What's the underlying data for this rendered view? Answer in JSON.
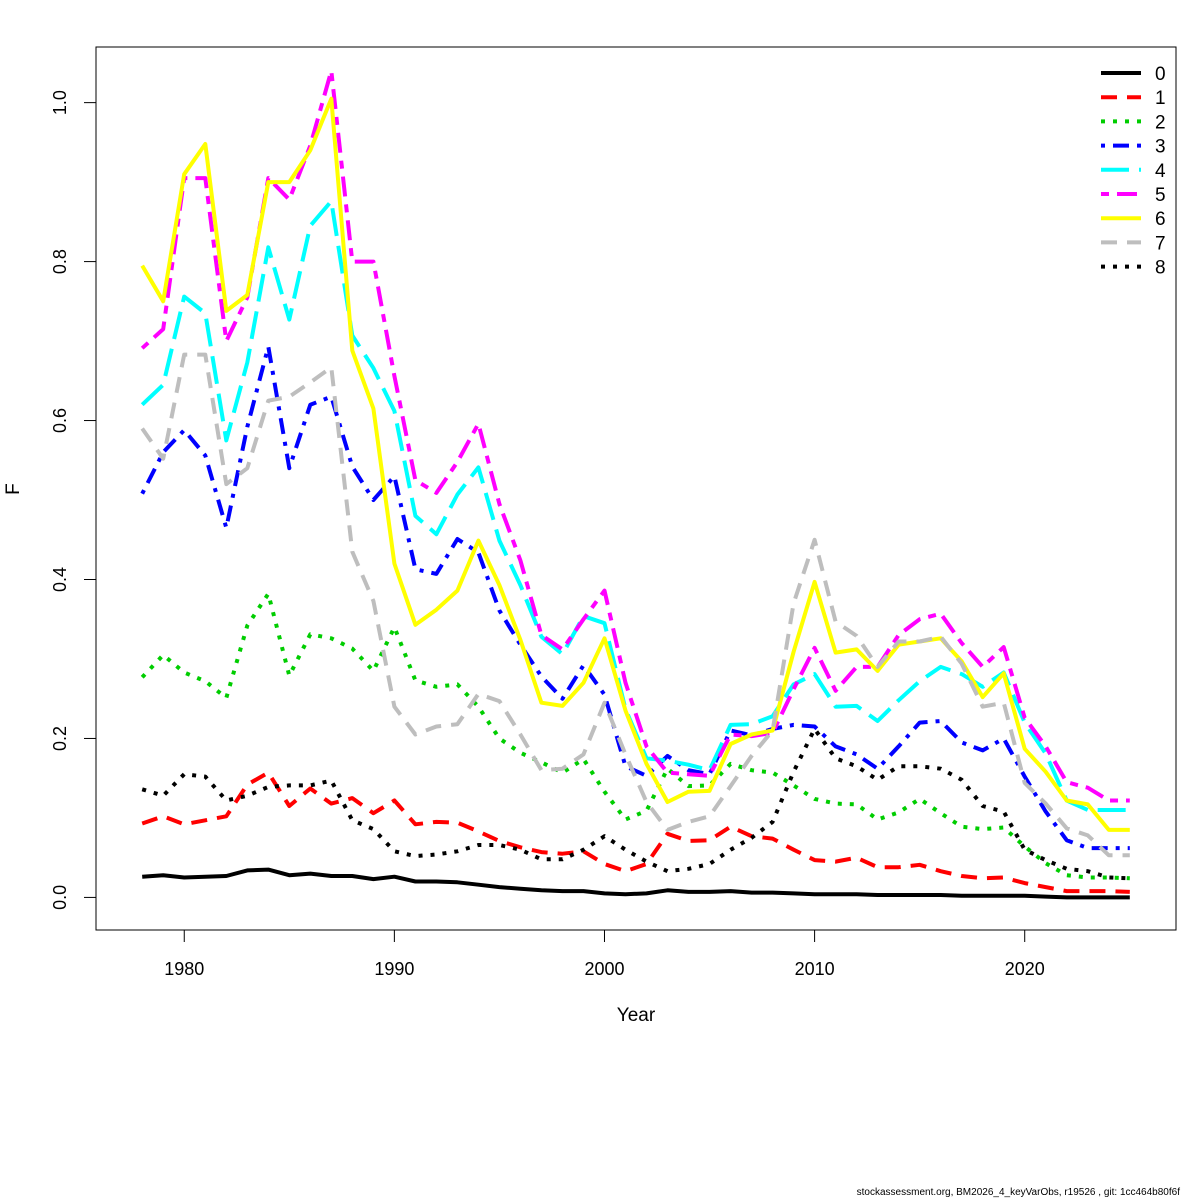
{
  "chart_data": {
    "type": "line",
    "xlabel": "Year",
    "ylabel": "F",
    "xlim": [
      1976.2,
      1926.8
    ],
    "ylim": [
      -0.041,
      1.07
    ],
    "x_ticks": [
      1980,
      1990,
      2000,
      2010,
      2020
    ],
    "y_ticks": [
      0.0,
      0.2,
      0.4,
      0.6,
      0.8,
      1.0
    ],
    "x_tick_labels": [
      "1980",
      "1990",
      "2000",
      "2010",
      "2020"
    ],
    "y_tick_labels": [
      "0.0",
      "0.2",
      "0.4",
      "0.6",
      "0.8",
      "1.0"
    ],
    "legend_position": "top-right",
    "x": [
      1978,
      1979,
      1980,
      1981,
      1982,
      1983,
      1984,
      1985,
      1986,
      1987,
      1988,
      1989,
      1990,
      1991,
      1992,
      1993,
      1994,
      1995,
      1996,
      1997,
      1998,
      1999,
      2000,
      2001,
      2002,
      2003,
      2004,
      2005,
      2006,
      2007,
      2008,
      2009,
      2010,
      2011,
      2012,
      2013,
      2014,
      2015,
      2016,
      2017,
      2018,
      2019,
      2020,
      2021,
      2022,
      2023,
      2024,
      2025
    ],
    "series": [
      {
        "name": "0",
        "color": "#000000",
        "dash": "solid",
        "values": [
          0.026,
          0.028,
          0.025,
          0.026,
          0.027,
          0.034,
          0.035,
          0.028,
          0.03,
          0.027,
          0.027,
          0.023,
          0.026,
          0.02,
          0.02,
          0.019,
          0.016,
          0.013,
          0.011,
          0.009,
          0.008,
          0.008,
          0.005,
          0.004,
          0.005,
          0.009,
          0.007,
          0.007,
          0.008,
          0.006,
          0.006,
          0.005,
          0.004,
          0.004,
          0.004,
          0.003,
          0.003,
          0.003,
          0.003,
          0.002,
          0.002,
          0.002,
          0.002,
          0.001,
          0.0,
          0.0,
          0.0,
          0.0
        ]
      },
      {
        "name": "1",
        "color": "#ff0000",
        "dash": "dashed",
        "values": [
          0.093,
          0.102,
          0.092,
          0.097,
          0.102,
          0.142,
          0.157,
          0.115,
          0.137,
          0.118,
          0.125,
          0.106,
          0.122,
          0.092,
          0.095,
          0.094,
          0.083,
          0.071,
          0.063,
          0.057,
          0.055,
          0.058,
          0.042,
          0.033,
          0.042,
          0.08,
          0.071,
          0.072,
          0.089,
          0.077,
          0.074,
          0.06,
          0.047,
          0.045,
          0.05,
          0.038,
          0.038,
          0.041,
          0.033,
          0.027,
          0.024,
          0.025,
          0.018,
          0.013,
          0.008,
          0.008,
          0.008,
          0.007
        ]
      },
      {
        "name": "2",
        "color": "#00cd00",
        "dash": "dotted",
        "values": [
          0.277,
          0.305,
          0.283,
          0.272,
          0.251,
          0.342,
          0.382,
          0.279,
          0.331,
          0.326,
          0.313,
          0.285,
          0.34,
          0.273,
          0.265,
          0.268,
          0.24,
          0.2,
          0.182,
          0.17,
          0.157,
          0.174,
          0.133,
          0.098,
          0.109,
          0.162,
          0.14,
          0.141,
          0.168,
          0.16,
          0.157,
          0.141,
          0.124,
          0.118,
          0.117,
          0.098,
          0.107,
          0.124,
          0.106,
          0.089,
          0.086,
          0.088,
          0.064,
          0.043,
          0.028,
          0.025,
          0.025,
          0.024
        ]
      },
      {
        "name": "3",
        "color": "#0000ff",
        "dash": "dashdot",
        "values": [
          0.508,
          0.56,
          0.588,
          0.556,
          0.465,
          0.592,
          0.693,
          0.54,
          0.62,
          0.63,
          0.542,
          0.5,
          0.53,
          0.413,
          0.407,
          0.451,
          0.434,
          0.361,
          0.318,
          0.278,
          0.25,
          0.292,
          0.255,
          0.165,
          0.153,
          0.178,
          0.16,
          0.155,
          0.21,
          0.204,
          0.212,
          0.217,
          0.215,
          0.19,
          0.18,
          0.162,
          0.19,
          0.22,
          0.222,
          0.195,
          0.185,
          0.2,
          0.152,
          0.108,
          0.072,
          0.062,
          0.062,
          0.062
        ]
      },
      {
        "name": "4",
        "color": "#00ffff",
        "dash": "longdash",
        "values": [
          0.62,
          0.645,
          0.756,
          0.735,
          0.575,
          0.673,
          0.818,
          0.727,
          0.845,
          0.876,
          0.707,
          0.666,
          0.612,
          0.48,
          0.457,
          0.507,
          0.541,
          0.449,
          0.393,
          0.328,
          0.306,
          0.354,
          0.345,
          0.237,
          0.175,
          0.172,
          0.167,
          0.16,
          0.217,
          0.218,
          0.228,
          0.268,
          0.281,
          0.24,
          0.241,
          0.222,
          0.248,
          0.272,
          0.29,
          0.281,
          0.265,
          0.283,
          0.22,
          0.181,
          0.122,
          0.11,
          0.11,
          0.11
        ]
      },
      {
        "name": "5",
        "color": "#ff00ff",
        "dash": "twodash",
        "values": [
          0.691,
          0.715,
          0.905,
          0.905,
          0.7,
          0.755,
          0.905,
          0.878,
          0.946,
          1.04,
          0.8,
          0.8,
          0.656,
          0.525,
          0.509,
          0.548,
          0.596,
          0.495,
          0.424,
          0.33,
          0.312,
          0.35,
          0.386,
          0.27,
          0.19,
          0.157,
          0.155,
          0.153,
          0.205,
          0.203,
          0.207,
          0.262,
          0.314,
          0.26,
          0.29,
          0.29,
          0.33,
          0.35,
          0.357,
          0.32,
          0.29,
          0.315,
          0.226,
          0.19,
          0.145,
          0.138,
          0.122,
          0.122
        ]
      },
      {
        "name": "6",
        "color": "#ffff00",
        "dash": "solid",
        "values": [
          0.795,
          0.75,
          0.91,
          0.948,
          0.738,
          0.758,
          0.9,
          0.9,
          0.94,
          1.005,
          0.688,
          0.615,
          0.42,
          0.343,
          0.362,
          0.386,
          0.449,
          0.393,
          0.324,
          0.245,
          0.241,
          0.27,
          0.326,
          0.235,
          0.168,
          0.12,
          0.133,
          0.134,
          0.193,
          0.205,
          0.21,
          0.309,
          0.397,
          0.308,
          0.312,
          0.285,
          0.318,
          0.322,
          0.326,
          0.297,
          0.252,
          0.282,
          0.187,
          0.158,
          0.122,
          0.117,
          0.085,
          0.085
        ]
      },
      {
        "name": "7",
        "color": "#bebebe",
        "dash": "dashed",
        "values": [
          0.59,
          0.552,
          0.683,
          0.683,
          0.52,
          0.54,
          0.625,
          0.63,
          0.648,
          0.667,
          0.435,
          0.373,
          0.24,
          0.205,
          0.215,
          0.218,
          0.256,
          0.247,
          0.205,
          0.16,
          0.162,
          0.18,
          0.245,
          0.18,
          0.12,
          0.085,
          0.095,
          0.102,
          0.14,
          0.178,
          0.21,
          0.37,
          0.45,
          0.347,
          0.329,
          0.29,
          0.322,
          0.322,
          0.328,
          0.294,
          0.24,
          0.245,
          0.144,
          0.118,
          0.087,
          0.078,
          0.053,
          0.053
        ]
      },
      {
        "name": "8",
        "color": "#000000",
        "dash": "dotted",
        "values": [
          0.136,
          0.128,
          0.155,
          0.152,
          0.122,
          0.128,
          0.139,
          0.141,
          0.141,
          0.147,
          0.097,
          0.086,
          0.058,
          0.052,
          0.054,
          0.058,
          0.066,
          0.066,
          0.06,
          0.048,
          0.048,
          0.06,
          0.077,
          0.06,
          0.045,
          0.033,
          0.036,
          0.042,
          0.06,
          0.075,
          0.095,
          0.158,
          0.212,
          0.175,
          0.165,
          0.148,
          0.165,
          0.165,
          0.162,
          0.148,
          0.115,
          0.108,
          0.06,
          0.047,
          0.036,
          0.033,
          0.025,
          0.024
        ]
      }
    ]
  },
  "footer": "stockassessment.org, BM2026_4_keyVarObs, r19526 , git: 1cc464b80f6f"
}
